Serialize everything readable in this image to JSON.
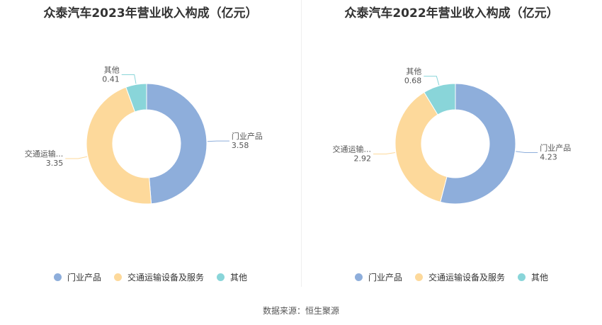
{
  "colors": {
    "门业产品": "#8eaedb",
    "交通运输设备及服务": "#fdd99b",
    "其他": "#89d5d9"
  },
  "chart_data": [
    {
      "type": "pie",
      "title": "众泰汽车2023年营业收入构成（亿元）",
      "slices": [
        {
          "label": "门业产品",
          "short_label": "门业产品",
          "value": 3.58
        },
        {
          "label": "交通运输设备及服务",
          "short_label": "交通运输...",
          "value": 3.35
        },
        {
          "label": "其他",
          "short_label": "其他",
          "value": 0.41
        }
      ],
      "legend": [
        "门业产品",
        "交通运输设备及服务",
        "其他"
      ],
      "legend_position": "bottom"
    },
    {
      "type": "pie",
      "title": "众泰汽车2022年营业收入构成（亿元）",
      "slices": [
        {
          "label": "门业产品",
          "short_label": "门业产品",
          "value": 4.23
        },
        {
          "label": "交通运输设备及服务",
          "short_label": "交通运输...",
          "value": 2.92
        },
        {
          "label": "其他",
          "short_label": "其他",
          "value": 0.68
        }
      ],
      "legend": [
        "门业产品",
        "交通运输设备及服务",
        "其他"
      ],
      "legend_position": "bottom"
    }
  ],
  "source": "数据来源：恒生聚源"
}
